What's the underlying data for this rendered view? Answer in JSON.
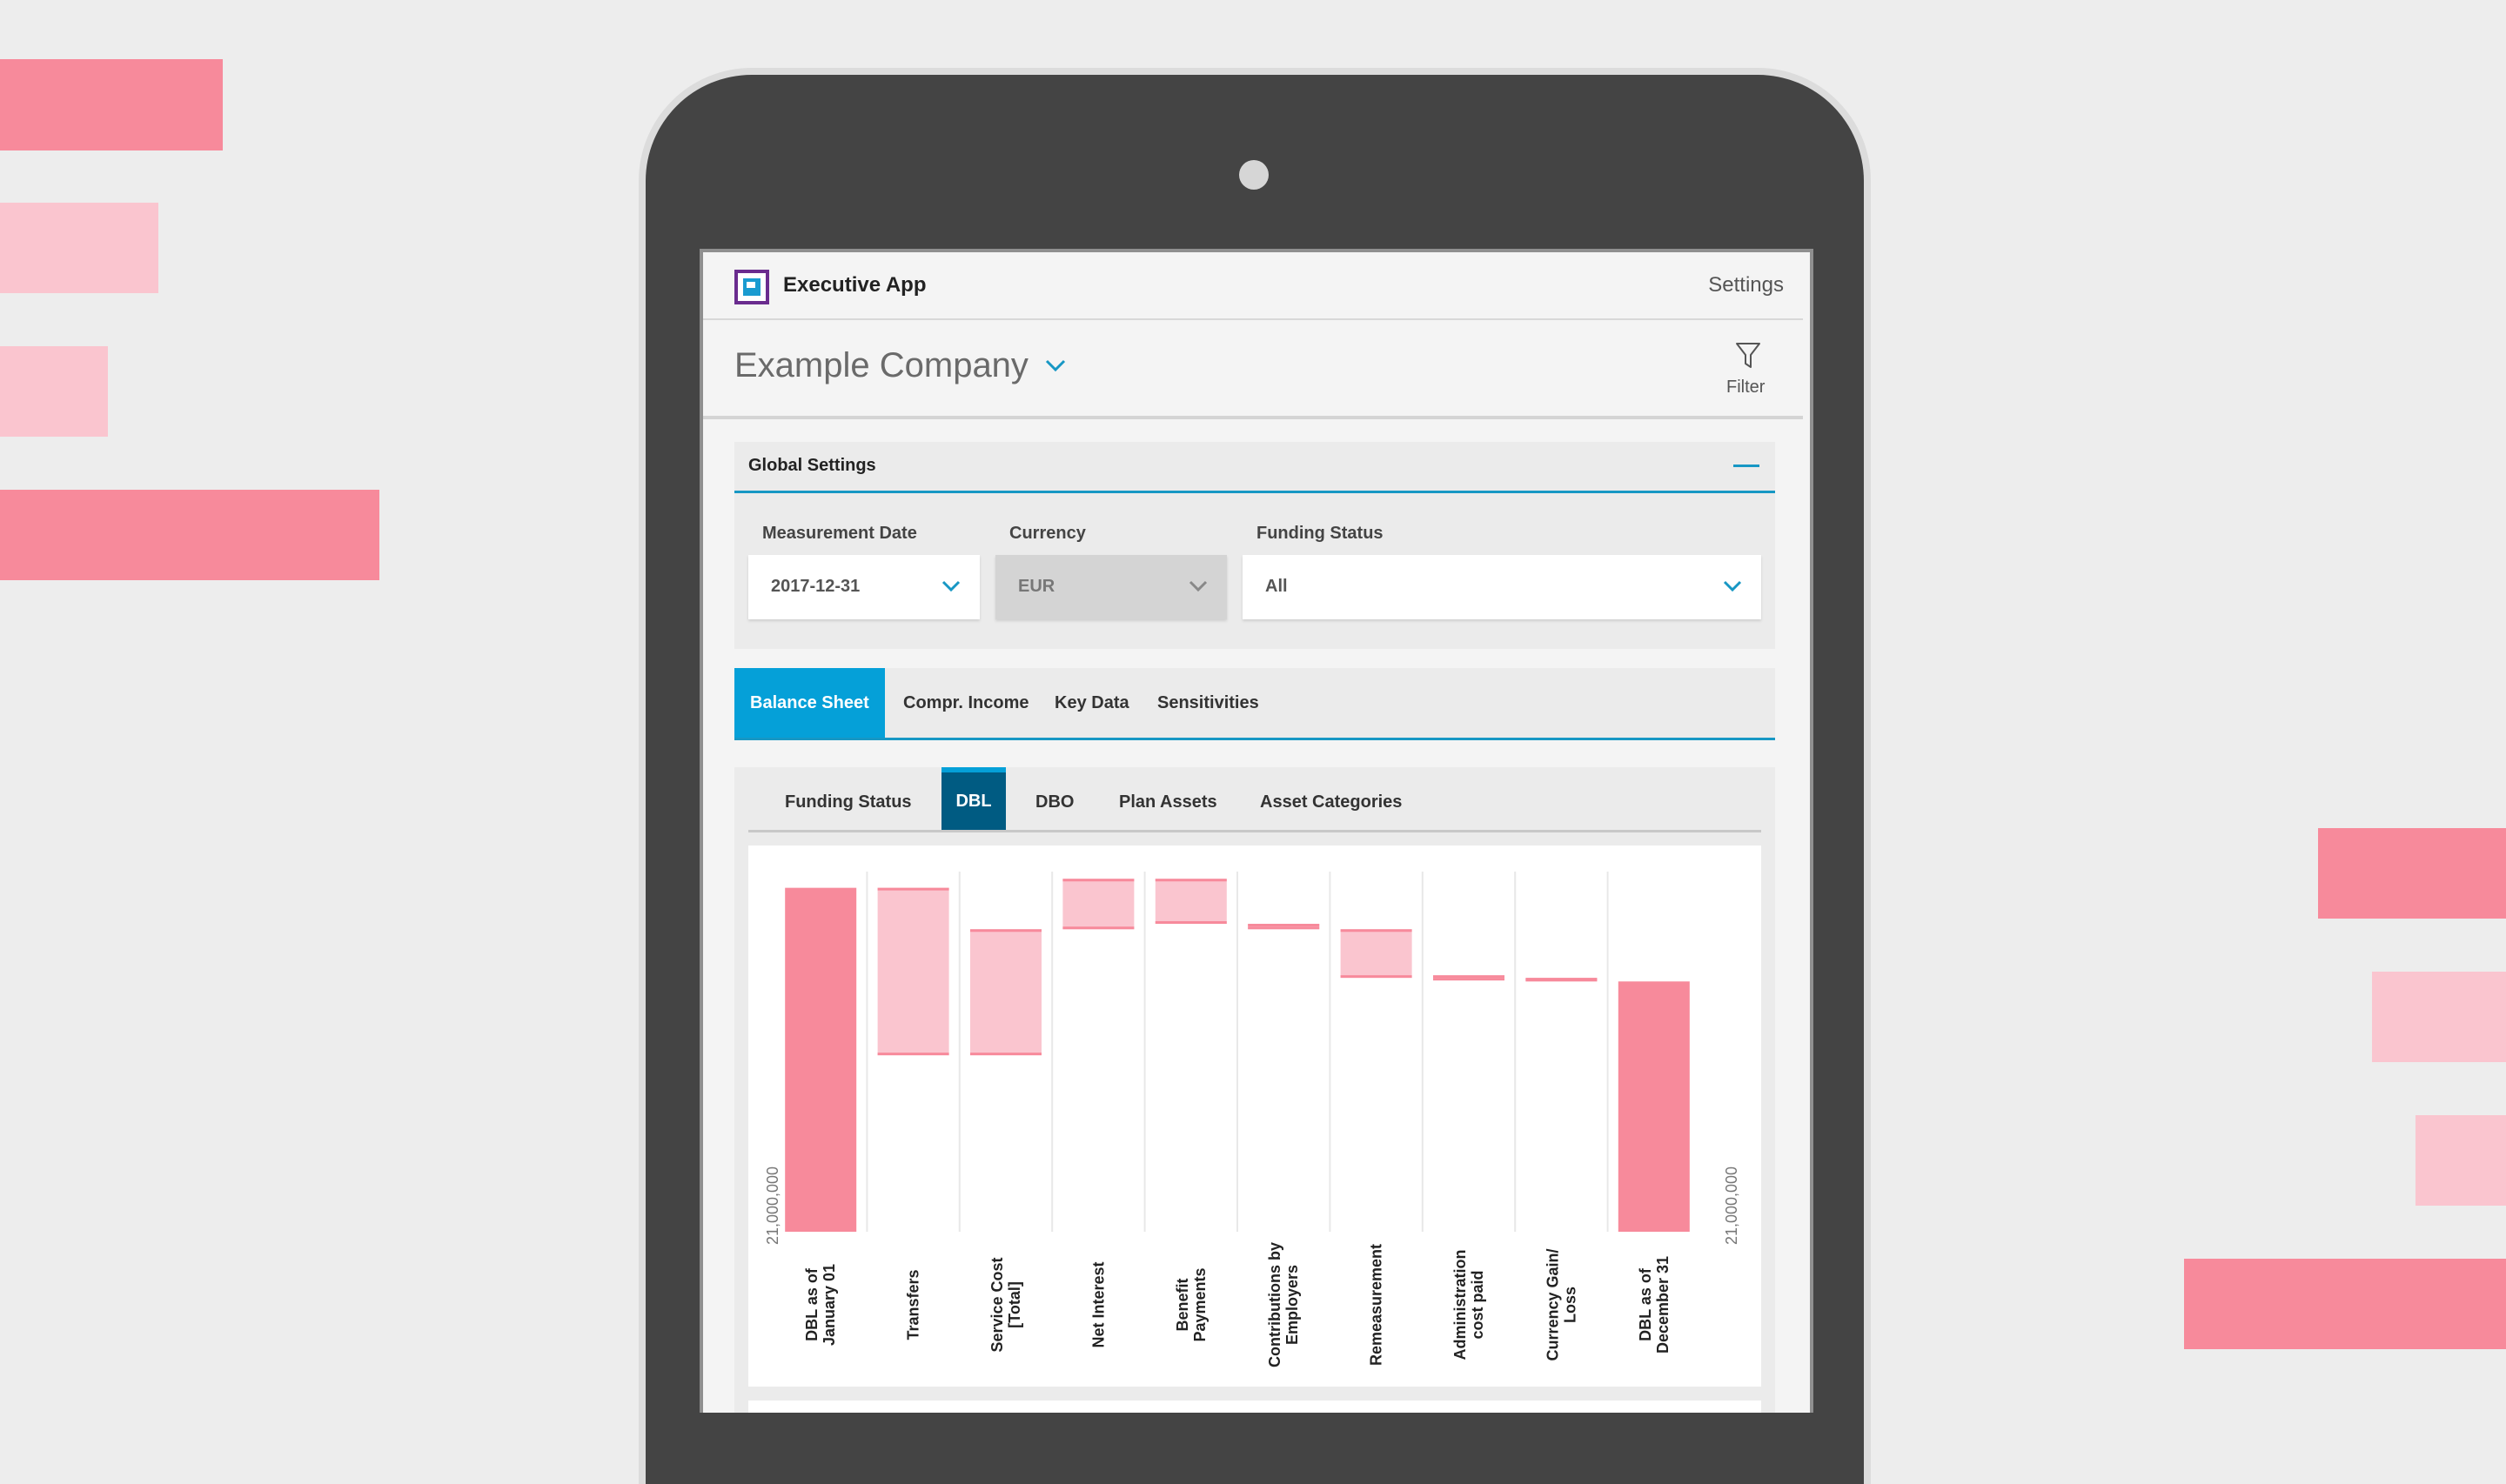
{
  "app": {
    "title": "Executive App",
    "settings_label": "Settings",
    "company_name": "Example Company",
    "filter_label": "Filter"
  },
  "colors": {
    "accent": "#05a0d8",
    "accent_dark": "#005b82",
    "brand_purple": "#6a2c8e",
    "pink_strong": "#f78a9b",
    "pink_light": "#fac5cf"
  },
  "global_settings": {
    "title": "Global Settings",
    "fields": [
      {
        "label": "Measurement Date",
        "value": "2017-12-31",
        "disabled": false
      },
      {
        "label": "Currency",
        "value": "EUR",
        "disabled": true
      },
      {
        "label": "Funding Status",
        "value": "All",
        "disabled": false
      }
    ]
  },
  "main_tabs": [
    {
      "label": "Balance Sheet",
      "active": true
    },
    {
      "label": "Compr. Income",
      "active": false
    },
    {
      "label": "Key Data",
      "active": false
    },
    {
      "label": "Sensitivities",
      "active": false
    }
  ],
  "sub_tabs": [
    {
      "label": "Funding Status",
      "active": false
    },
    {
      "label": "DBL",
      "active": true
    },
    {
      "label": "DBO",
      "active": false
    },
    {
      "label": "Plan Assets",
      "active": false
    },
    {
      "label": "Asset Categories",
      "active": false
    }
  ],
  "chart_data": {
    "type": "bar",
    "subtype": "waterfall",
    "axis_label_left": "21,000,000",
    "axis_label_right": "21,000,000",
    "grid": "vertical",
    "categories": [
      [
        "DBL as of",
        "January 01"
      ],
      [
        "Transfers"
      ],
      [
        "Service Cost",
        "[Total]"
      ],
      [
        "Net Interest"
      ],
      [
        "Benefit",
        "Payments"
      ],
      [
        "Contributions by",
        "Employers"
      ],
      [
        "Remeasurement"
      ],
      [
        "Administration",
        "cost paid"
      ],
      [
        "Currency Gain/",
        "Loss"
      ],
      [
        "DBL as of",
        "December 31"
      ]
    ],
    "category_labels": [
      "DBL as of January 01",
      "Transfers",
      "Service Cost [Total]",
      "Net Interest",
      "Benefit Payments",
      "Contributions by Employers",
      "Remeasurement",
      "Administration cost paid",
      "Currency Gain/ Loss",
      "DBL as of December 31"
    ],
    "value_min": 21000000,
    "bars": [
      {
        "kind": "total",
        "start": 21000000,
        "end": 40100000
      },
      {
        "kind": "step",
        "start": 40100000,
        "end": 30800000
      },
      {
        "kind": "step",
        "start": 30800000,
        "end": 37800000
      },
      {
        "kind": "step",
        "start": 37800000,
        "end": 40600000
      },
      {
        "kind": "step",
        "start": 40600000,
        "end": 38100000
      },
      {
        "kind": "step",
        "start": 38100000,
        "end": 37800000
      },
      {
        "kind": "step",
        "start": 37800000,
        "end": 35100000
      },
      {
        "kind": "step",
        "start": 35100000,
        "end": 35100000
      },
      {
        "kind": "step",
        "start": 35100000,
        "end": 34900000
      },
      {
        "kind": "total",
        "start": 21000000,
        "end": 34900000
      }
    ],
    "y_max": 41000000
  }
}
